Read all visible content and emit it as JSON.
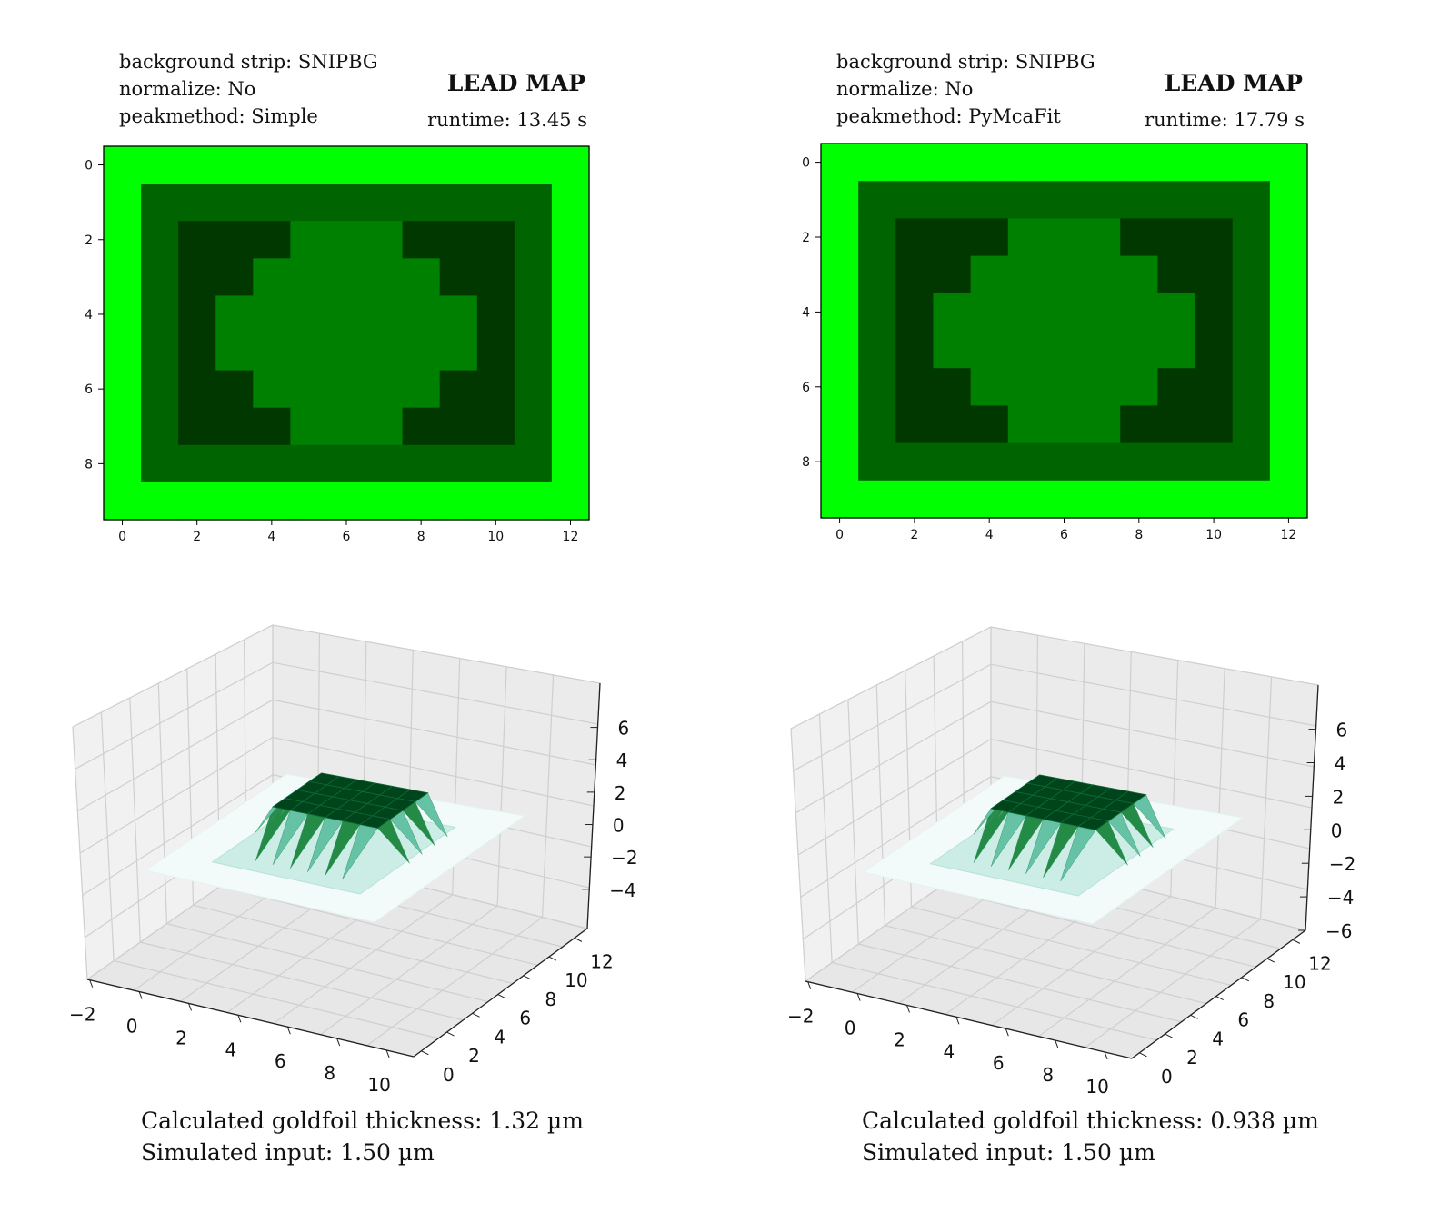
{
  "panels": [
    {
      "settings": [
        "background strip: SNIPBG",
        "normalize: No",
        "peakmethod: Simple"
      ],
      "title": "LEAD MAP",
      "runtime": "runtime: 13.45 s",
      "result_lines": [
        "Calculated goldfoil thickness: 1.32 µm",
        "Simulated input: 1.50 µm"
      ]
    },
    {
      "settings": [
        "background strip: SNIPBG",
        "normalize: No",
        "peakmethod: PyMcaFit"
      ],
      "title": "LEAD MAP",
      "runtime": "runtime: 17.79 s",
      "result_lines": [
        "Calculated goldfoil thickness: 0.938 µm",
        "Simulated input: 1.50 µm"
      ]
    }
  ],
  "colors": {
    "level_0": "#00ff00",
    "level_1": "#006400",
    "level_2": "#003800",
    "level_3": "#008000",
    "surface_top": "#00441b",
    "surface_mid": "#238b45",
    "surface_low": "#66c2a4",
    "surface_base": "#f2fafa"
  },
  "chart_data": [
    {
      "type": "heatmap",
      "panel": 0,
      "x_ticks": [
        0,
        2,
        4,
        6,
        8,
        10,
        12
      ],
      "y_ticks": [
        0,
        2,
        4,
        6,
        8
      ],
      "xlim": [
        -0.5,
        12.5
      ],
      "ylim": [
        9.5,
        -0.5
      ],
      "grid": [
        [
          0,
          0,
          0,
          0,
          0,
          0,
          0,
          0,
          0,
          0,
          0,
          0,
          0
        ],
        [
          0,
          1,
          1,
          1,
          1,
          1,
          1,
          1,
          1,
          1,
          1,
          1,
          0
        ],
        [
          0,
          1,
          2,
          2,
          2,
          3,
          3,
          3,
          2,
          2,
          2,
          1,
          0
        ],
        [
          0,
          1,
          2,
          2,
          3,
          3,
          3,
          3,
          3,
          2,
          2,
          1,
          0
        ],
        [
          0,
          1,
          2,
          3,
          3,
          3,
          3,
          3,
          3,
          3,
          2,
          1,
          0
        ],
        [
          0,
          1,
          2,
          3,
          3,
          3,
          3,
          3,
          3,
          3,
          2,
          1,
          0
        ],
        [
          0,
          1,
          2,
          2,
          3,
          3,
          3,
          3,
          3,
          2,
          2,
          1,
          0
        ],
        [
          0,
          1,
          2,
          2,
          2,
          3,
          3,
          3,
          2,
          2,
          2,
          1,
          0
        ],
        [
          0,
          1,
          1,
          1,
          1,
          1,
          1,
          1,
          1,
          1,
          1,
          1,
          0
        ],
        [
          0,
          0,
          0,
          0,
          0,
          0,
          0,
          0,
          0,
          0,
          0,
          0,
          0
        ]
      ]
    },
    {
      "type": "heatmap",
      "panel": 1,
      "x_ticks": [
        0,
        2,
        4,
        6,
        8,
        10,
        12
      ],
      "y_ticks": [
        0,
        2,
        4,
        6,
        8
      ],
      "xlim": [
        -0.5,
        12.5
      ],
      "ylim": [
        9.5,
        -0.5
      ],
      "grid": [
        [
          0,
          0,
          0,
          0,
          0,
          0,
          0,
          0,
          0,
          0,
          0,
          0,
          0
        ],
        [
          0,
          1,
          1,
          1,
          1,
          1,
          1,
          1,
          1,
          1,
          1,
          1,
          0
        ],
        [
          0,
          1,
          2,
          2,
          2,
          3,
          3,
          3,
          2,
          2,
          2,
          1,
          0
        ],
        [
          0,
          1,
          2,
          2,
          3,
          3,
          3,
          3,
          3,
          2,
          2,
          1,
          0
        ],
        [
          0,
          1,
          2,
          3,
          3,
          3,
          3,
          3,
          3,
          3,
          2,
          1,
          0
        ],
        [
          0,
          1,
          2,
          3,
          3,
          3,
          3,
          3,
          3,
          3,
          2,
          1,
          0
        ],
        [
          0,
          1,
          2,
          2,
          3,
          3,
          3,
          3,
          3,
          2,
          2,
          1,
          0
        ],
        [
          0,
          1,
          2,
          2,
          2,
          3,
          3,
          3,
          2,
          2,
          2,
          1,
          0
        ],
        [
          0,
          1,
          1,
          1,
          1,
          1,
          1,
          1,
          1,
          1,
          1,
          1,
          0
        ],
        [
          0,
          0,
          0,
          0,
          0,
          0,
          0,
          0,
          0,
          0,
          0,
          0,
          0
        ]
      ]
    },
    {
      "type": "surface",
      "panel": 0,
      "x_ticks": [
        "−2",
        "0",
        "2",
        "4",
        "6",
        "8",
        "10"
      ],
      "y_ticks": [
        "0",
        "2",
        "4",
        "6",
        "8",
        "10",
        "12"
      ],
      "z_ticks": [
        "−4",
        "−2",
        "0",
        "2",
        "4",
        "6"
      ]
    },
    {
      "type": "surface",
      "panel": 1,
      "x_ticks": [
        "−2",
        "0",
        "2",
        "4",
        "6",
        "8",
        "10"
      ],
      "y_ticks": [
        "0",
        "2",
        "4",
        "6",
        "8",
        "10",
        "12"
      ],
      "z_ticks": [
        "−6",
        "−4",
        "−2",
        "0",
        "2",
        "4",
        "6"
      ]
    }
  ]
}
